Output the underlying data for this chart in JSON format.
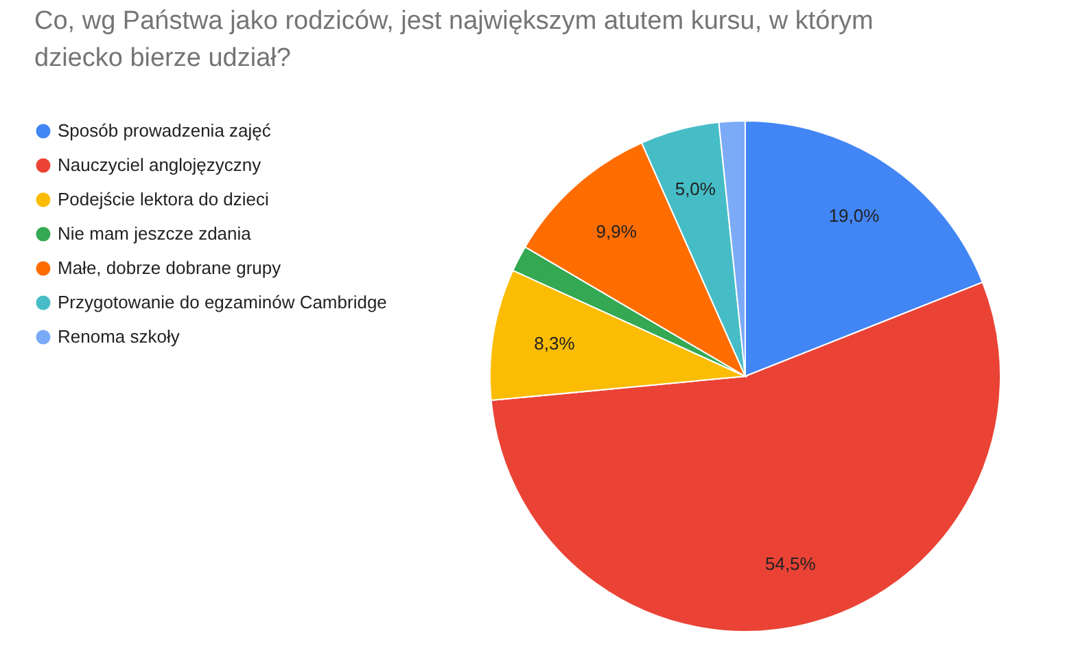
{
  "chart_data": {
    "type": "pie",
    "title": "Co, wg Państwa jako rodziców, jest największym atutem kursu, w którym dziecko bierze udział?",
    "categories": [
      "Sposób prowadzenia zajęć",
      "Nauczyciel anglojęzyczny",
      "Podejście lektora do dzieci",
      "Nie mam jeszcze zdania",
      "Małe, dobrze dobrane grupy",
      "Przygotowanie do egzaminów Cambridge",
      "Renoma szkoły"
    ],
    "values": [
      19.0,
      54.5,
      8.3,
      1.65,
      9.9,
      5.0,
      1.65
    ],
    "value_labels": [
      "19,0%",
      "54,5%",
      "8,3%",
      null,
      "9,9%",
      "5,0%",
      null
    ],
    "colors": [
      "#4285f4",
      "#ea4335",
      "#fbbc04",
      "#34a853",
      "#ff6d01",
      "#46bdc6",
      "#7baaf7"
    ],
    "legend": "left"
  }
}
